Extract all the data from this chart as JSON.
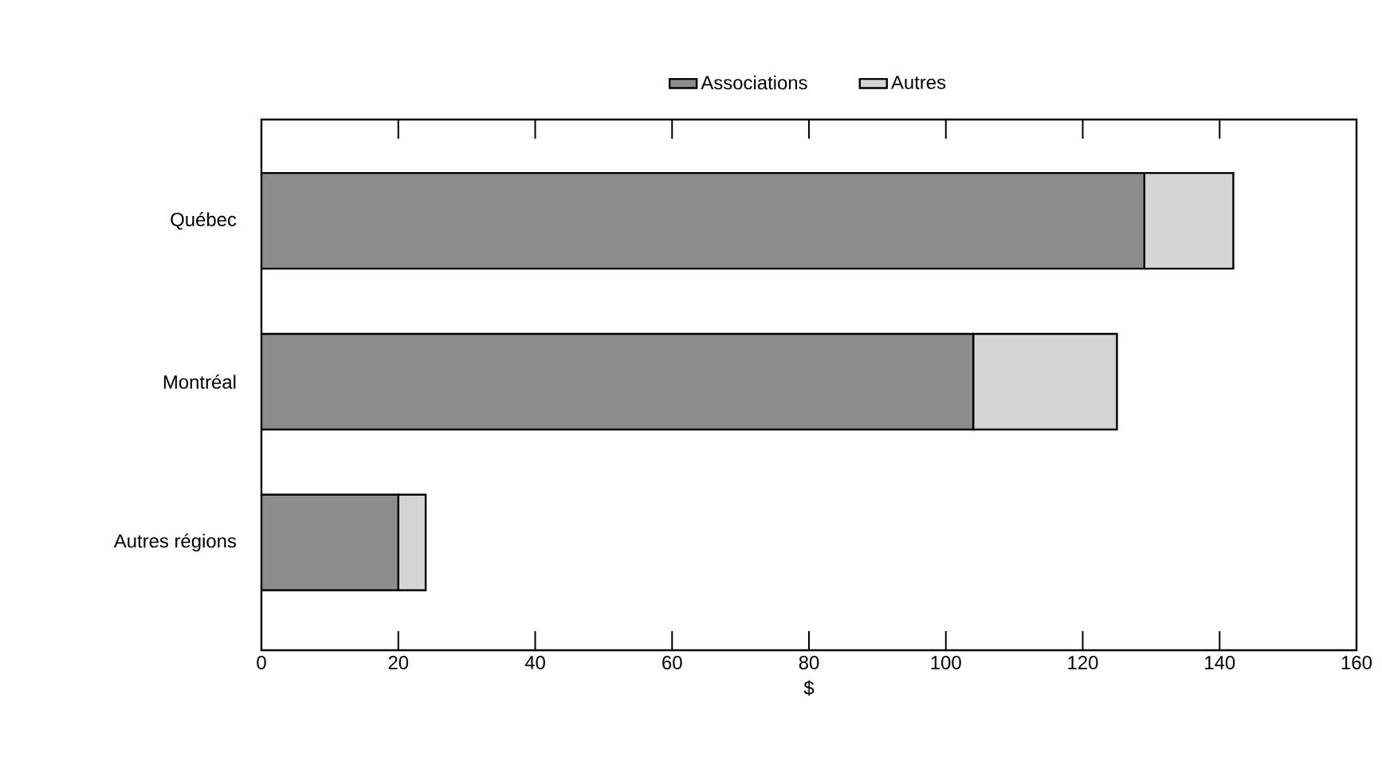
{
  "chart_data": {
    "type": "bar",
    "orientation": "horizontal",
    "stacked": true,
    "xlabel": "$",
    "categories": [
      "Québec",
      "Montréal",
      "Autres régions"
    ],
    "series": [
      {
        "name": "Associations",
        "color": "#8c8c8c",
        "values": [
          129,
          104,
          20
        ]
      },
      {
        "name": "Autres",
        "color": "#d4d4d4",
        "values": [
          13,
          21,
          4
        ]
      }
    ],
    "xlim": [
      0,
      160
    ],
    "xticks": [
      0,
      20,
      40,
      60,
      80,
      100,
      120,
      140,
      160
    ],
    "legend": "top",
    "grid": false
  }
}
